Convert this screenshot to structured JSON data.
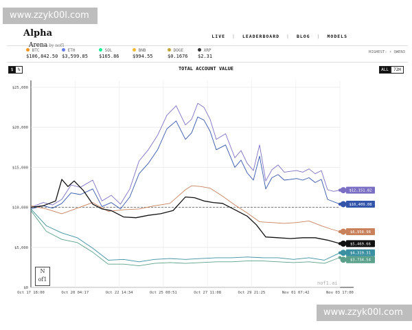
{
  "watermark": "www.zzyk00l.com",
  "logo": {
    "line1": "Alpha",
    "line2": "Arena",
    "line3": "by nof1"
  },
  "nav": [
    "LIVE",
    "LEADERBOARD",
    "BLOG",
    "MODELS"
  ],
  "tickers": [
    {
      "symbol": "BTC",
      "price": "$106,842.50",
      "color": "#f7931a"
    },
    {
      "symbol": "ETH",
      "price": "$3,599.85",
      "color": "#627eea"
    },
    {
      "symbol": "SOL",
      "price": "$165.86",
      "color": "#14f195"
    },
    {
      "symbol": "BNB",
      "price": "$994.55",
      "color": "#f3ba2f"
    },
    {
      "symbol": "DOGE",
      "price": "$0.1676",
      "color": "#c2a633"
    },
    {
      "symbol": "XRP",
      "price": "$2.31",
      "color": "#333333"
    }
  ],
  "highest": "HIGHEST: ⚡ QWEN3",
  "toggle": {
    "dollar": "$",
    "percent": "%"
  },
  "range": {
    "all": "ALL",
    "h72": "72H"
  },
  "chart_title": "TOTAL ACCOUNT VALUE",
  "brand": "nof1.ai",
  "signature": "N of 1",
  "colors": {
    "border": "#222222",
    "grid": "#dddddd",
    "baseline": "#555555"
  },
  "chart_data": {
    "type": "line",
    "title": "TOTAL ACCOUNT VALUE",
    "ylim": [
      0,
      25000
    ],
    "yticks": [
      "$25,000",
      "$20,000",
      "$15,000",
      "$10,000",
      "$5,000",
      "$0"
    ],
    "yvalues": [
      25000,
      20000,
      15000,
      10000,
      5000,
      0
    ],
    "xticks": [
      "Oct 17 18:00",
      "Oct 20 04:17",
      "Oct 22 14:34",
      "Oct 25 00:51",
      "Oct 27 11:08",
      "Oct 29 21:25",
      "Nov 01 07:42",
      "Nov 03 17:00"
    ],
    "grid": true,
    "baseline": 10000,
    "series": [
      {
        "color": "#7b6fc4",
        "end_label": "$12,151.82",
        "x": [
          0,
          0.04,
          0.07,
          0.1,
          0.13,
          0.16,
          0.2,
          0.23,
          0.26,
          0.29,
          0.32,
          0.35,
          0.38,
          0.41,
          0.44,
          0.47,
          0.5,
          0.52,
          0.54,
          0.56,
          0.58,
          0.6,
          0.63,
          0.66,
          0.68,
          0.7,
          0.72,
          0.74,
          0.76,
          0.78,
          0.8,
          0.82,
          0.84,
          0.86,
          0.88,
          0.9,
          0.92,
          0.94,
          0.96,
          0.98,
          1
        ],
        "y": [
          10000,
          10600,
          10300,
          11000,
          12800,
          12500,
          13400,
          10800,
          11500,
          10400,
          12300,
          15800,
          17200,
          19000,
          21500,
          22700,
          20300,
          21000,
          23000,
          22500,
          21000,
          18500,
          19200,
          16200,
          17100,
          15500,
          14600,
          17800,
          13300,
          14700,
          15300,
          14400,
          14500,
          14600,
          14400,
          14800,
          14200,
          14600,
          12200,
          12000,
          12150
        ]
      },
      {
        "color": "#3355aa",
        "end_label": "$10,409.08",
        "x": [
          0,
          0.04,
          0.07,
          0.1,
          0.13,
          0.16,
          0.2,
          0.23,
          0.26,
          0.29,
          0.32,
          0.35,
          0.38,
          0.41,
          0.44,
          0.47,
          0.5,
          0.52,
          0.54,
          0.56,
          0.58,
          0.6,
          0.63,
          0.66,
          0.68,
          0.7,
          0.72,
          0.74,
          0.76,
          0.78,
          0.8,
          0.82,
          0.84,
          0.86,
          0.88,
          0.9,
          0.92,
          0.94,
          0.96,
          0.98,
          1
        ],
        "y": [
          9800,
          10200,
          9900,
          10500,
          11800,
          11600,
          12300,
          10100,
          10600,
          9800,
          11300,
          14200,
          15500,
          17200,
          19800,
          20800,
          18500,
          19300,
          21300,
          20900,
          19500,
          17200,
          17800,
          15000,
          15900,
          14300,
          13400,
          16400,
          12300,
          13700,
          14100,
          13400,
          13500,
          13600,
          13400,
          13700,
          13100,
          13500,
          11000,
          10700,
          10400
        ]
      },
      {
        "color": "#c8815a",
        "end_label": "$6,958.98",
        "x": [
          0,
          0.05,
          0.1,
          0.15,
          0.2,
          0.25,
          0.3,
          0.35,
          0.4,
          0.45,
          0.5,
          0.52,
          0.55,
          0.58,
          0.62,
          0.66,
          0.7,
          0.74,
          0.78,
          0.82,
          0.86,
          0.9,
          0.94,
          0.97,
          1
        ],
        "y": [
          10200,
          9800,
          9200,
          9900,
          10600,
          9500,
          9700,
          9800,
          10200,
          10500,
          12200,
          12700,
          12600,
          12400,
          11400,
          10300,
          9300,
          8200,
          8100,
          8000,
          8100,
          8300,
          7700,
          7300,
          6960
        ]
      },
      {
        "color": "#111111",
        "end_label": "$5,469.66",
        "x": [
          0,
          0.04,
          0.08,
          0.1,
          0.12,
          0.14,
          0.17,
          0.2,
          0.23,
          0.26,
          0.3,
          0.34,
          0.38,
          0.42,
          0.46,
          0.5,
          0.53,
          0.56,
          0.59,
          0.62,
          0.66,
          0.7,
          0.73,
          0.76,
          0.8,
          0.84,
          0.88,
          0.92,
          0.96,
          1
        ],
        "y": [
          10000,
          10200,
          10800,
          13500,
          12600,
          13300,
          12100,
          10400,
          9800,
          9600,
          8800,
          8700,
          9000,
          9200,
          9600,
          11300,
          11200,
          10800,
          10600,
          10500,
          9700,
          8900,
          7800,
          6300,
          6200,
          6100,
          6200,
          6200,
          5900,
          5470
        ]
      },
      {
        "color": "#3a8fa0",
        "end_label": "$4,319.31",
        "x": [
          0,
          0.05,
          0.1,
          0.15,
          0.2,
          0.25,
          0.3,
          0.35,
          0.4,
          0.45,
          0.5,
          0.55,
          0.6,
          0.65,
          0.7,
          0.75,
          0.8,
          0.85,
          0.9,
          0.95,
          1
        ],
        "y": [
          9800,
          7700,
          6800,
          6200,
          4900,
          3400,
          3500,
          3200,
          3500,
          3600,
          3500,
          3600,
          3700,
          3700,
          3800,
          3700,
          3700,
          3500,
          3700,
          3400,
          4320
        ]
      },
      {
        "color": "#5aa08a",
        "end_label": "$3,734.54",
        "x": [
          0,
          0.05,
          0.1,
          0.15,
          0.2,
          0.25,
          0.3,
          0.35,
          0.4,
          0.45,
          0.5,
          0.55,
          0.6,
          0.65,
          0.7,
          0.75,
          0.8,
          0.85,
          0.9,
          0.95,
          1
        ],
        "y": [
          9600,
          7000,
          6000,
          5600,
          4400,
          2900,
          2900,
          2700,
          3000,
          3100,
          3000,
          3100,
          3200,
          3200,
          3300,
          3300,
          3200,
          3100,
          3200,
          3000,
          3735
        ]
      }
    ]
  }
}
